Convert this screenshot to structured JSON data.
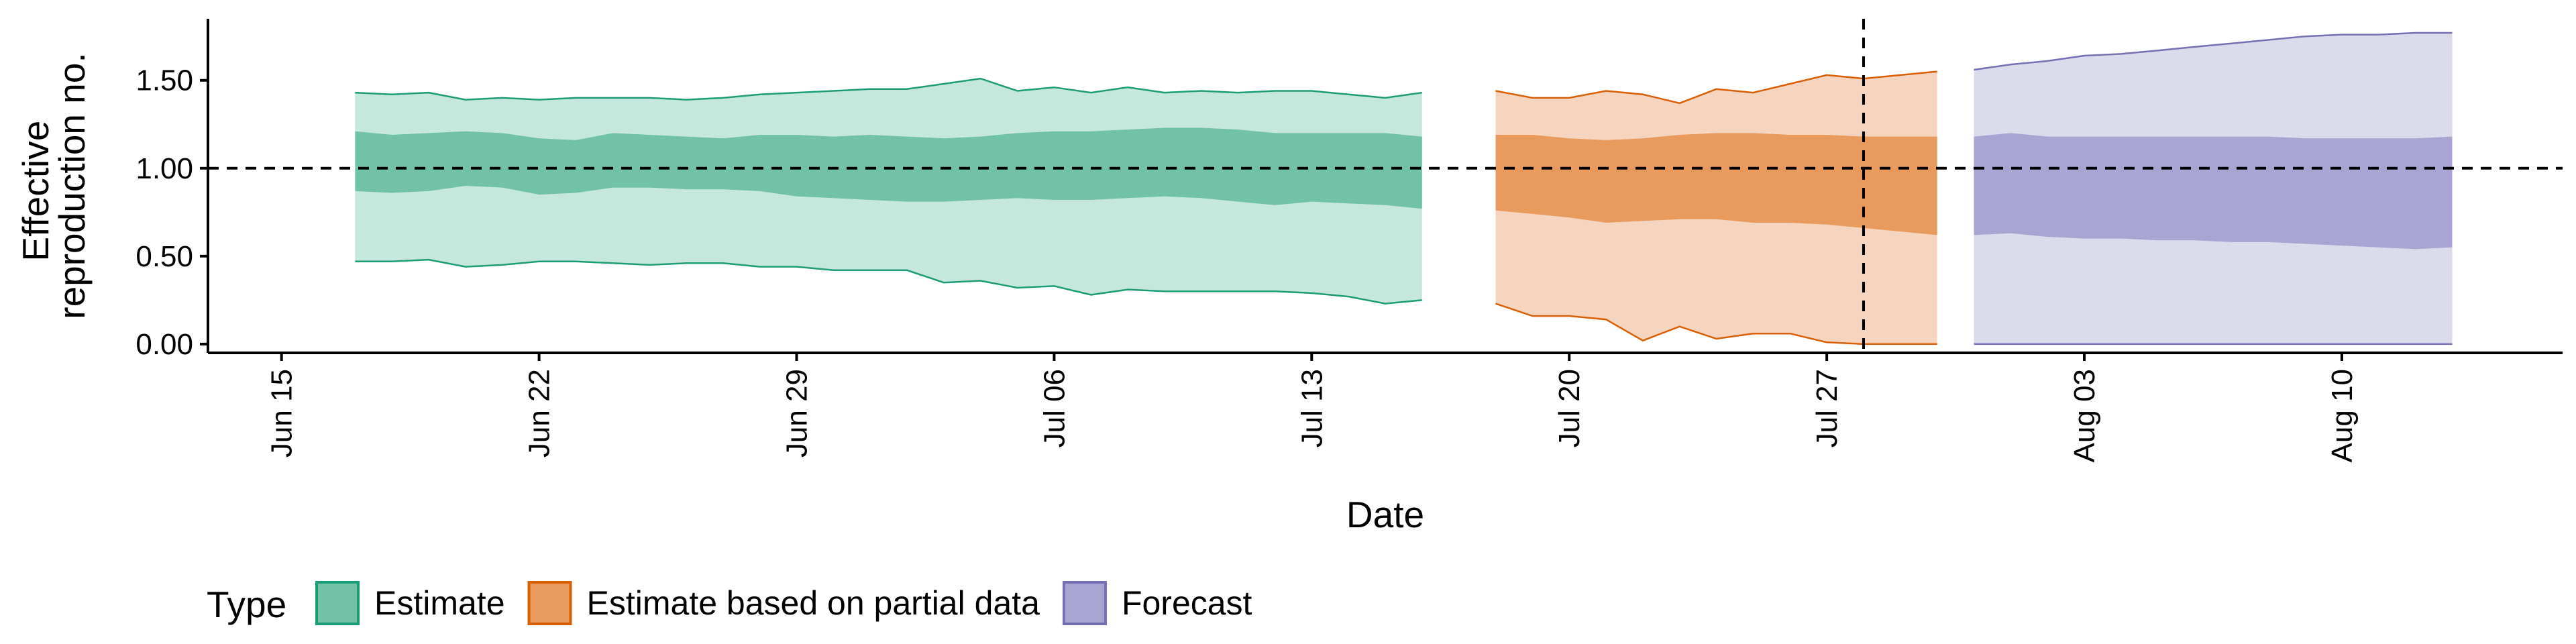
{
  "chart_data": {
    "type": "area",
    "xlabel": "Date",
    "ylabel_lines": [
      "Effective",
      "reproduction no."
    ],
    "xlim": [
      "2020-06-13",
      "2020-08-16"
    ],
    "ylim": [
      -0.05,
      1.85
    ],
    "x_ticks": [
      {
        "date": "2020-06-15",
        "label": "Jun 15"
      },
      {
        "date": "2020-06-22",
        "label": "Jun 22"
      },
      {
        "date": "2020-06-29",
        "label": "Jun 29"
      },
      {
        "date": "2020-07-06",
        "label": "Jul 06"
      },
      {
        "date": "2020-07-13",
        "label": "Jul 13"
      },
      {
        "date": "2020-07-20",
        "label": "Jul 20"
      },
      {
        "date": "2020-07-27",
        "label": "Jul 27"
      },
      {
        "date": "2020-08-03",
        "label": "Aug 03"
      },
      {
        "date": "2020-08-10",
        "label": "Aug 10"
      }
    ],
    "y_ticks": [
      {
        "value": 0.0,
        "label": "0.00"
      },
      {
        "value": 0.5,
        "label": "0.50"
      },
      {
        "value": 1.0,
        "label": "1.00"
      },
      {
        "value": 1.5,
        "label": "1.50"
      }
    ],
    "reference_line_y": 1.0,
    "reference_line_x": "2020-07-28",
    "legend": {
      "title": "Type",
      "placement": "bottom-left",
      "items": [
        {
          "label": "Estimate",
          "fill": "#72c2a7",
          "stroke": "#1b9e77"
        },
        {
          "label": "Estimate based on partial data",
          "fill": "#e99b5e",
          "stroke": "#d95f02"
        },
        {
          "label": "Forecast",
          "fill": "#a8a5d2",
          "stroke": "#7570b3"
        }
      ]
    },
    "series": [
      {
        "name": "Estimate",
        "start_date": "2020-06-17",
        "outer_fill": "#c5e7dc",
        "inner_fill": "#72c2a7",
        "stroke": "#1b9e77",
        "upper90": [
          1.43,
          1.42,
          1.43,
          1.39,
          1.4,
          1.39,
          1.4,
          1.4,
          1.4,
          1.39,
          1.4,
          1.42,
          1.43,
          1.44,
          1.45,
          1.45,
          1.48,
          1.51,
          1.44,
          1.46,
          1.43,
          1.46,
          1.43,
          1.44,
          1.43,
          1.44,
          1.44,
          1.42,
          1.4,
          1.43
        ],
        "upper50": [
          1.21,
          1.19,
          1.2,
          1.21,
          1.2,
          1.17,
          1.16,
          1.2,
          1.19,
          1.18,
          1.17,
          1.19,
          1.19,
          1.18,
          1.19,
          1.18,
          1.17,
          1.18,
          1.2,
          1.21,
          1.21,
          1.22,
          1.23,
          1.23,
          1.22,
          1.2,
          1.2,
          1.2,
          1.2,
          1.18
        ],
        "lower50": [
          0.87,
          0.86,
          0.87,
          0.9,
          0.89,
          0.85,
          0.86,
          0.89,
          0.89,
          0.88,
          0.88,
          0.87,
          0.84,
          0.83,
          0.82,
          0.81,
          0.81,
          0.82,
          0.83,
          0.82,
          0.82,
          0.83,
          0.84,
          0.83,
          0.81,
          0.79,
          0.81,
          0.8,
          0.79,
          0.77
        ],
        "lower90": [
          0.47,
          0.47,
          0.48,
          0.44,
          0.45,
          0.47,
          0.47,
          0.46,
          0.45,
          0.46,
          0.46,
          0.44,
          0.44,
          0.42,
          0.42,
          0.42,
          0.35,
          0.36,
          0.32,
          0.33,
          0.28,
          0.31,
          0.3,
          0.3,
          0.3,
          0.3,
          0.29,
          0.27,
          0.23,
          0.25
        ]
      },
      {
        "name": "Estimate based on partial data",
        "start_date": "2020-07-18",
        "outer_fill": "#f5d5bf",
        "inner_fill": "#e99b5e",
        "stroke": "#d95f02",
        "upper90": [
          1.44,
          1.4,
          1.4,
          1.44,
          1.42,
          1.37,
          1.45,
          1.43,
          1.48,
          1.53,
          1.51,
          1.53,
          1.55
        ],
        "upper50": [
          1.19,
          1.19,
          1.17,
          1.16,
          1.17,
          1.19,
          1.2,
          1.2,
          1.19,
          1.19,
          1.18,
          1.18,
          1.18
        ],
        "lower50": [
          0.76,
          0.74,
          0.72,
          0.69,
          0.7,
          0.71,
          0.71,
          0.69,
          0.69,
          0.68,
          0.66,
          0.64,
          0.62
        ],
        "lower90": [
          0.23,
          0.16,
          0.16,
          0.14,
          0.02,
          0.1,
          0.03,
          0.06,
          0.06,
          0.01,
          0.0,
          0.0,
          0.0
        ]
      },
      {
        "name": "Forecast",
        "start_date": "2020-07-31",
        "outer_fill": "#dcdbec",
        "inner_fill": "#a8a5d2",
        "stroke": "#7570b3",
        "upper90": [
          1.56,
          1.59,
          1.61,
          1.64,
          1.65,
          1.67,
          1.69,
          1.71,
          1.73,
          1.75,
          1.76,
          1.76,
          1.77,
          1.77
        ],
        "upper50": [
          1.18,
          1.2,
          1.18,
          1.18,
          1.18,
          1.18,
          1.18,
          1.18,
          1.18,
          1.17,
          1.17,
          1.17,
          1.17,
          1.18
        ],
        "lower50": [
          0.62,
          0.63,
          0.61,
          0.6,
          0.6,
          0.59,
          0.59,
          0.58,
          0.58,
          0.57,
          0.56,
          0.55,
          0.54,
          0.55
        ],
        "lower90": [
          0.0,
          0.0,
          0.0,
          0.0,
          0.0,
          0.0,
          0.0,
          0.0,
          0.0,
          0.0,
          0.0,
          0.0,
          0.0,
          0.0
        ]
      }
    ]
  }
}
